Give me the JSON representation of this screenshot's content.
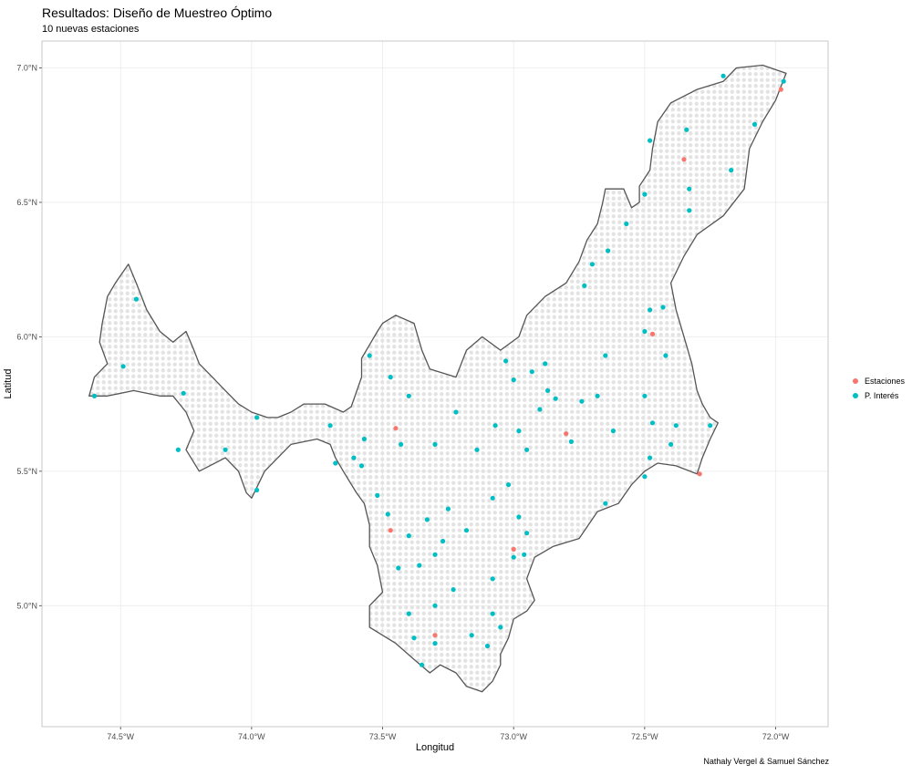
{
  "header": {
    "title": "Resultados: Diseño de Muestreo Óptimo",
    "subtitle": "10 nuevas estaciones"
  },
  "caption": "Nathaly Vergel & Samuel Sánchez",
  "legend": {
    "items": [
      {
        "label": "Estaciones",
        "color": "#f8766d"
      },
      {
        "label": "P. Interés",
        "color": "#00bfc4"
      }
    ]
  },
  "chart_data": {
    "type": "scatter",
    "xlabel": "Longitud",
    "ylabel": "Latitud",
    "xlim": [
      -74.8,
      -71.8
    ],
    "ylim": [
      4.55,
      7.1
    ],
    "x_ticks": [
      {
        "value": -74.5,
        "label": "74.5°W"
      },
      {
        "value": -74.0,
        "label": "74.0°W"
      },
      {
        "value": -73.5,
        "label": "73.5°W"
      },
      {
        "value": -73.0,
        "label": "73.0°W"
      },
      {
        "value": -72.5,
        "label": "72.5°W"
      },
      {
        "value": -72.0,
        "label": "72.0°W"
      }
    ],
    "y_ticks": [
      {
        "value": 5.0,
        "label": "5.0°N"
      },
      {
        "value": 5.5,
        "label": "5.5°N"
      },
      {
        "value": 6.0,
        "label": "6.0°N"
      },
      {
        "value": 6.5,
        "label": "6.5°N"
      },
      {
        "value": 7.0,
        "label": "7.0°N"
      }
    ],
    "grid": true,
    "legend_position": "right",
    "region_outline": [
      [
        -74.62,
        5.78
      ],
      [
        -74.6,
        5.85
      ],
      [
        -74.55,
        5.9
      ],
      [
        -74.58,
        5.98
      ],
      [
        -74.57,
        6.05
      ],
      [
        -74.55,
        6.15
      ],
      [
        -74.52,
        6.2
      ],
      [
        -74.47,
        6.27
      ],
      [
        -74.44,
        6.2
      ],
      [
        -74.4,
        6.1
      ],
      [
        -74.35,
        6.02
      ],
      [
        -74.3,
        5.98
      ],
      [
        -74.25,
        6.02
      ],
      [
        -74.22,
        5.95
      ],
      [
        -74.2,
        5.9
      ],
      [
        -74.15,
        5.85
      ],
      [
        -74.1,
        5.8
      ],
      [
        -74.05,
        5.75
      ],
      [
        -74.0,
        5.72
      ],
      [
        -73.94,
        5.7
      ],
      [
        -73.9,
        5.7
      ],
      [
        -73.85,
        5.72
      ],
      [
        -73.8,
        5.75
      ],
      [
        -73.72,
        5.75
      ],
      [
        -73.65,
        5.72
      ],
      [
        -73.62,
        5.74
      ],
      [
        -73.58,
        5.85
      ],
      [
        -73.58,
        5.92
      ],
      [
        -73.55,
        5.97
      ],
      [
        -73.52,
        6.02
      ],
      [
        -73.5,
        6.05
      ],
      [
        -73.45,
        6.08
      ],
      [
        -73.38,
        6.05
      ],
      [
        -73.35,
        5.95
      ],
      [
        -73.32,
        5.88
      ],
      [
        -73.22,
        5.85
      ],
      [
        -73.18,
        5.95
      ],
      [
        -73.12,
        6.0
      ],
      [
        -73.05,
        5.95
      ],
      [
        -72.98,
        6.0
      ],
      [
        -72.95,
        6.08
      ],
      [
        -72.88,
        6.15
      ],
      [
        -72.8,
        6.2
      ],
      [
        -72.75,
        6.28
      ],
      [
        -72.72,
        6.36
      ],
      [
        -72.68,
        6.42
      ],
      [
        -72.66,
        6.5
      ],
      [
        -72.65,
        6.55
      ],
      [
        -72.58,
        6.55
      ],
      [
        -72.55,
        6.48
      ],
      [
        -72.52,
        6.5
      ],
      [
        -72.52,
        6.56
      ],
      [
        -72.48,
        6.62
      ],
      [
        -72.47,
        6.7
      ],
      [
        -72.45,
        6.8
      ],
      [
        -72.4,
        6.87
      ],
      [
        -72.3,
        6.92
      ],
      [
        -72.2,
        6.95
      ],
      [
        -72.15,
        7.0
      ],
      [
        -72.05,
        7.01
      ],
      [
        -71.96,
        6.98
      ],
      [
        -72.0,
        6.88
      ],
      [
        -72.05,
        6.8
      ],
      [
        -72.1,
        6.7
      ],
      [
        -72.12,
        6.55
      ],
      [
        -72.2,
        6.45
      ],
      [
        -72.3,
        6.38
      ],
      [
        -72.35,
        6.3
      ],
      [
        -72.4,
        6.2
      ],
      [
        -72.38,
        6.1
      ],
      [
        -72.35,
        6.0
      ],
      [
        -72.32,
        5.9
      ],
      [
        -72.3,
        5.8
      ],
      [
        -72.28,
        5.75
      ],
      [
        -72.25,
        5.7
      ],
      [
        -72.22,
        5.68
      ],
      [
        -72.25,
        5.62
      ],
      [
        -72.28,
        5.55
      ],
      [
        -72.3,
        5.49
      ],
      [
        -72.38,
        5.52
      ],
      [
        -72.45,
        5.53
      ],
      [
        -72.5,
        5.5
      ],
      [
        -72.55,
        5.45
      ],
      [
        -72.6,
        5.38
      ],
      [
        -72.68,
        5.35
      ],
      [
        -72.75,
        5.25
      ],
      [
        -72.85,
        5.22
      ],
      [
        -72.92,
        5.18
      ],
      [
        -72.95,
        5.1
      ],
      [
        -72.92,
        5.02
      ],
      [
        -72.95,
        4.98
      ],
      [
        -73.0,
        4.95
      ],
      [
        -73.02,
        4.88
      ],
      [
        -73.05,
        4.82
      ],
      [
        -73.05,
        4.78
      ],
      [
        -73.08,
        4.72
      ],
      [
        -73.12,
        4.68
      ],
      [
        -73.18,
        4.7
      ],
      [
        -73.22,
        4.75
      ],
      [
        -73.28,
        4.78
      ],
      [
        -73.32,
        4.75
      ],
      [
        -73.38,
        4.8
      ],
      [
        -73.45,
        4.86
      ],
      [
        -73.55,
        4.92
      ],
      [
        -73.55,
        5.0
      ],
      [
        -73.5,
        5.05
      ],
      [
        -73.52,
        5.15
      ],
      [
        -73.55,
        5.22
      ],
      [
        -73.55,
        5.3
      ],
      [
        -73.57,
        5.38
      ],
      [
        -73.6,
        5.42
      ],
      [
        -73.65,
        5.5
      ],
      [
        -73.68,
        5.55
      ],
      [
        -73.7,
        5.6
      ],
      [
        -73.75,
        5.62
      ],
      [
        -73.85,
        5.6
      ],
      [
        -73.9,
        5.55
      ],
      [
        -73.95,
        5.5
      ],
      [
        -74.0,
        5.4
      ],
      [
        -74.02,
        5.42
      ],
      [
        -74.05,
        5.5
      ],
      [
        -74.1,
        5.55
      ],
      [
        -74.2,
        5.5
      ],
      [
        -74.25,
        5.58
      ],
      [
        -74.22,
        5.65
      ],
      [
        -74.25,
        5.72
      ],
      [
        -74.3,
        5.78
      ],
      [
        -74.35,
        5.78
      ],
      [
        -74.45,
        5.8
      ],
      [
        -74.55,
        5.78
      ],
      [
        -74.62,
        5.78
      ]
    ],
    "series": [
      {
        "name": "Estaciones",
        "color": "#f8766d",
        "points": [
          [
            -74.6,
            5.78
          ],
          [
            -72.35,
            6.66
          ],
          [
            -71.98,
            6.92
          ],
          [
            -72.47,
            6.01
          ],
          [
            -73.45,
            5.66
          ],
          [
            -72.8,
            5.64
          ],
          [
            -72.29,
            5.49
          ],
          [
            -73.47,
            5.28
          ],
          [
            -73.0,
            5.21
          ],
          [
            -73.3,
            4.89
          ]
        ]
      },
      {
        "name": "P. Interés",
        "color": "#00bfc4",
        "points": [
          [
            -74.6,
            5.78
          ],
          [
            -74.49,
            5.89
          ],
          [
            -74.44,
            6.14
          ],
          [
            -74.26,
            5.79
          ],
          [
            -74.28,
            5.58
          ],
          [
            -74.1,
            5.58
          ],
          [
            -73.98,
            5.7
          ],
          [
            -73.98,
            5.43
          ],
          [
            -73.7,
            5.67
          ],
          [
            -73.68,
            5.53
          ],
          [
            -73.61,
            5.55
          ],
          [
            -73.58,
            5.52
          ],
          [
            -73.57,
            5.62
          ],
          [
            -73.55,
            5.93
          ],
          [
            -73.47,
            5.85
          ],
          [
            -73.43,
            5.6
          ],
          [
            -73.4,
            5.78
          ],
          [
            -73.3,
            5.6
          ],
          [
            -73.22,
            5.72
          ],
          [
            -73.14,
            5.58
          ],
          [
            -73.07,
            5.67
          ],
          [
            -73.03,
            5.91
          ],
          [
            -73.0,
            5.84
          ],
          [
            -72.98,
            5.65
          ],
          [
            -72.95,
            5.58
          ],
          [
            -72.88,
            5.9
          ],
          [
            -72.84,
            5.77
          ],
          [
            -72.78,
            5.61
          ],
          [
            -72.74,
            5.76
          ],
          [
            -72.68,
            5.78
          ],
          [
            -72.65,
            5.93
          ],
          [
            -72.62,
            5.65
          ],
          [
            -72.65,
            5.38
          ],
          [
            -72.5,
            5.78
          ],
          [
            -72.47,
            5.68
          ],
          [
            -72.48,
            5.55
          ],
          [
            -72.5,
            5.48
          ],
          [
            -72.4,
            5.6
          ],
          [
            -72.38,
            5.67
          ],
          [
            -72.25,
            5.67
          ],
          [
            -72.5,
            6.02
          ],
          [
            -72.48,
            6.1
          ],
          [
            -72.43,
            6.11
          ],
          [
            -72.42,
            5.93
          ],
          [
            -72.73,
            6.19
          ],
          [
            -72.7,
            6.27
          ],
          [
            -72.64,
            6.32
          ],
          [
            -72.57,
            6.42
          ],
          [
            -72.5,
            6.53
          ],
          [
            -72.48,
            6.73
          ],
          [
            -72.34,
            6.77
          ],
          [
            -72.33,
            6.47
          ],
          [
            -72.33,
            6.55
          ],
          [
            -72.17,
            6.62
          ],
          [
            -72.08,
            6.79
          ],
          [
            -72.2,
            6.97
          ],
          [
            -71.97,
            6.95
          ],
          [
            -72.87,
            5.8
          ],
          [
            -72.93,
            5.87
          ],
          [
            -72.9,
            5.73
          ],
          [
            -73.02,
            5.45
          ],
          [
            -73.08,
            5.4
          ],
          [
            -72.95,
            5.27
          ],
          [
            -72.98,
            5.33
          ],
          [
            -73.08,
            5.1
          ],
          [
            -73.0,
            5.18
          ],
          [
            -73.18,
            5.28
          ],
          [
            -73.27,
            5.24
          ],
          [
            -73.3,
            5.19
          ],
          [
            -73.36,
            5.15
          ],
          [
            -73.4,
            5.26
          ],
          [
            -73.48,
            5.34
          ],
          [
            -73.52,
            5.41
          ],
          [
            -73.33,
            5.32
          ],
          [
            -73.25,
            5.36
          ],
          [
            -73.08,
            4.97
          ],
          [
            -73.1,
            4.85
          ],
          [
            -73.05,
            4.92
          ],
          [
            -73.3,
            4.86
          ],
          [
            -73.38,
            4.88
          ],
          [
            -73.35,
            4.78
          ],
          [
            -73.4,
            4.97
          ],
          [
            -73.3,
            5.0
          ],
          [
            -73.23,
            5.06
          ],
          [
            -73.16,
            4.89
          ],
          [
            -73.44,
            5.14
          ],
          [
            -72.96,
            5.19
          ]
        ]
      }
    ]
  }
}
